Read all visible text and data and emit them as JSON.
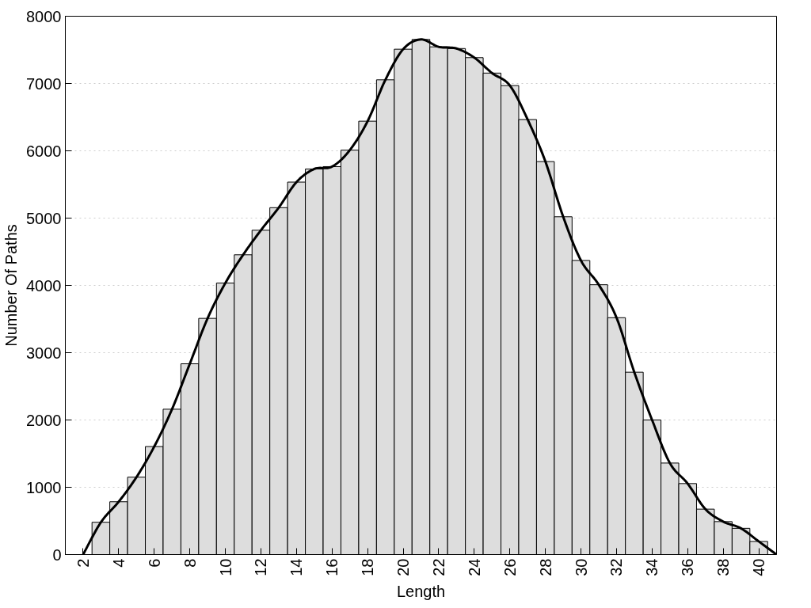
{
  "chart_data": {
    "type": "bar",
    "xlabel": "Length",
    "ylabel": "Number Of Paths",
    "x": [
      3,
      4,
      5,
      6,
      7,
      8,
      9,
      10,
      11,
      12,
      13,
      14,
      15,
      16,
      17,
      18,
      19,
      20,
      21,
      22,
      23,
      24,
      25,
      26,
      27,
      28,
      29,
      30,
      31,
      32,
      33,
      34,
      35,
      36,
      37,
      38,
      39,
      40
    ],
    "series": [
      {
        "color": "#dddddd",
        "values": [
          480,
          785,
          1150,
          1605,
          2160,
          2835,
          3510,
          4035,
          4455,
          4820,
          5155,
          5535,
          5730,
          5765,
          6010,
          6440,
          7055,
          7510,
          7655,
          7545,
          7520,
          7385,
          7155,
          6970,
          6465,
          5840,
          5020,
          4370,
          4010,
          3520,
          2710,
          2000,
          1360,
          1055,
          675,
          490,
          390,
          195
        ]
      },
      {
        "type": "line",
        "color": "#000000",
        "x": [
          2,
          3,
          4,
          5,
          6,
          7,
          8,
          9,
          10,
          11,
          12,
          13,
          14,
          15,
          16,
          17,
          18,
          19,
          20,
          21,
          22,
          23,
          24,
          25,
          26,
          27,
          28,
          29,
          30,
          31,
          32,
          33,
          34,
          35,
          36,
          37,
          38,
          39,
          40,
          41
        ],
        "values": [
          0,
          480,
          785,
          1150,
          1605,
          2160,
          2835,
          3510,
          4035,
          4455,
          4820,
          5155,
          5535,
          5730,
          5765,
          6010,
          6440,
          7055,
          7510,
          7655,
          7545,
          7520,
          7385,
          7155,
          6970,
          6465,
          5840,
          5020,
          4370,
          4010,
          3520,
          2710,
          2000,
          1360,
          1055,
          675,
          490,
          390,
          195,
          0
        ]
      }
    ],
    "xlim": [
      1,
      41
    ],
    "xticks": [
      2,
      4,
      6,
      8,
      10,
      12,
      14,
      16,
      18,
      20,
      22,
      24,
      26,
      28,
      30,
      32,
      34,
      36,
      38,
      40
    ],
    "ylim": [
      0,
      8000
    ],
    "yticks": [
      0,
      1000,
      2000,
      3000,
      4000,
      5000,
      6000,
      7000,
      8000
    ],
    "grid": "y",
    "line_style": "solid",
    "marker": "none"
  }
}
